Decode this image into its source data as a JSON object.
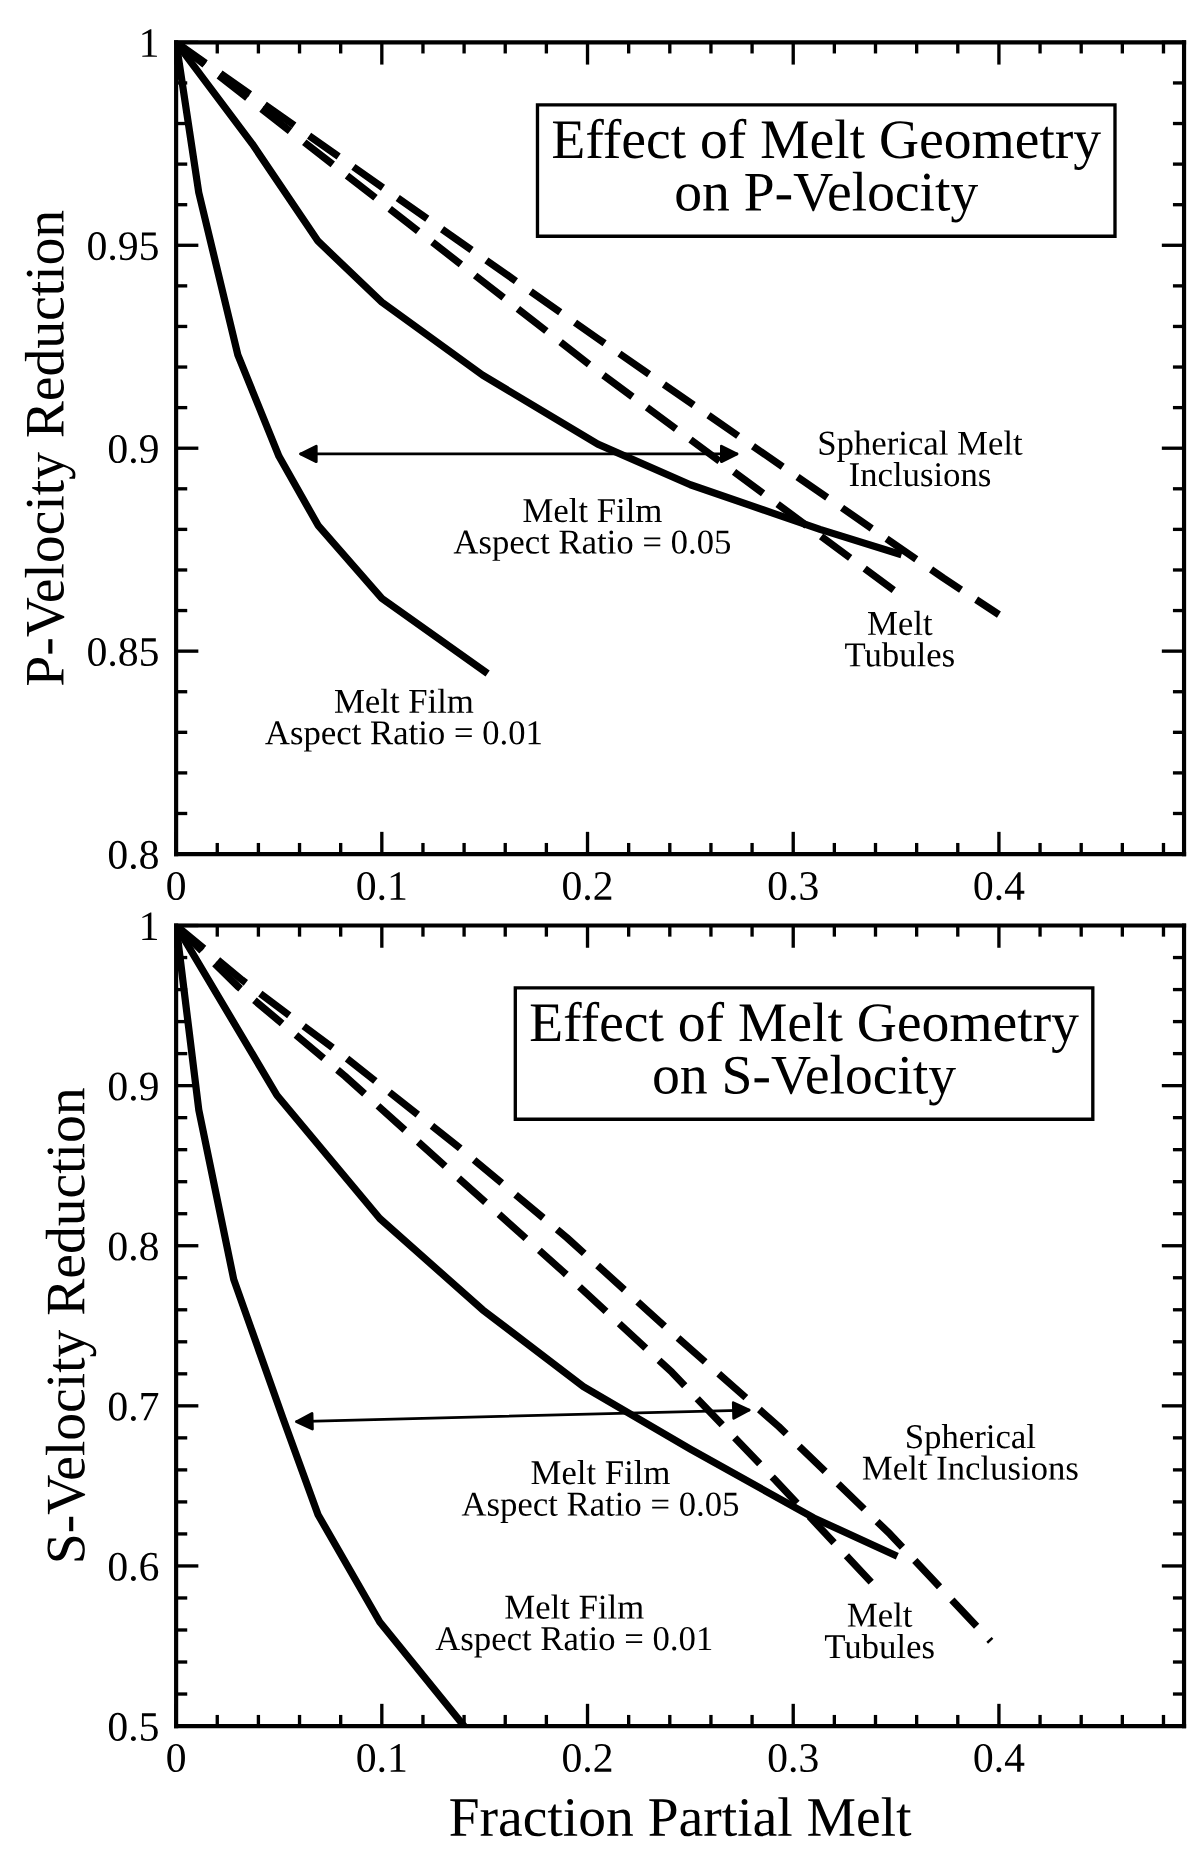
{
  "chart_data": [
    {
      "type": "line",
      "title": "Effect of Melt Geometry\non P-Velocity",
      "ylabel": "P-Velocity Reduction",
      "xlim": [
        0,
        0.49
      ],
      "xticks": [
        0,
        0.1,
        0.2,
        0.3,
        0.4
      ],
      "ylim": [
        0.8,
        1
      ],
      "yticks": [
        0.8,
        0.85,
        0.9,
        0.95,
        1
      ],
      "series": [
        {
          "name": "Melt Film\nAspect Ratio = 0.01",
          "color": "#000000",
          "line_style": "solid",
          "x": [
            0,
            0.011,
            0.03,
            0.05,
            0.069,
            0.1,
            0.15
          ],
          "values": [
            1,
            0.963,
            0.923,
            0.898,
            0.881,
            0.863,
            0.845
          ]
        },
        {
          "name": "Melt Film\nAspect Ratio = 0.05",
          "color": "#000000",
          "line_style": "solid",
          "x": [
            0,
            0.037,
            0.069,
            0.1,
            0.149,
            0.205,
            0.25,
            0.313,
            0.351
          ],
          "values": [
            1,
            0.975,
            0.951,
            0.936,
            0.918,
            0.901,
            0.891,
            0.88,
            0.874
          ]
        },
        {
          "name": "Spherical Melt\nInclusions",
          "color": "#000000",
          "line_style": "dashed",
          "x": [
            0,
            0.205,
            0.373,
            0.4
          ],
          "values": [
            1,
            0.927,
            0.868,
            0.859
          ]
        },
        {
          "name": "Melt\nTubules",
          "color": "#000000",
          "line_style": "dashed",
          "x": [
            0,
            0.205,
            0.349
          ],
          "values": [
            1,
            0.919,
            0.865
          ]
        }
      ]
    },
    {
      "type": "line",
      "title": "Effect of Melt Geometry\non S-Velocity",
      "xlabel": "Fraction Partial Melt",
      "ylabel": "S-Velocity Reduction",
      "xlim": [
        0,
        0.49
      ],
      "xticks": [
        0,
        0.1,
        0.2,
        0.3,
        0.4
      ],
      "ylim": [
        0.5,
        1
      ],
      "yticks": [
        0.5,
        0.6,
        0.7,
        0.8,
        0.9,
        1
      ],
      "series": [
        {
          "name": "Melt Film\nAspect Ratio = 0.01",
          "color": "#000000",
          "line_style": "solid",
          "x": [
            0,
            0.011,
            0.028,
            0.052,
            0.069,
            0.099,
            0.14
          ],
          "values": [
            1,
            0.885,
            0.779,
            0.692,
            0.632,
            0.565,
            0.5
          ]
        },
        {
          "name": "Melt Film\nAspect Ratio = 0.05",
          "color": "#000000",
          "line_style": "solid",
          "x": [
            0,
            0.049,
            0.099,
            0.149,
            0.198,
            0.25,
            0.31,
            0.349
          ],
          "values": [
            1,
            0.894,
            0.817,
            0.76,
            0.712,
            0.673,
            0.63,
            0.607
          ]
        },
        {
          "name": "Spherical\nMelt Inclusions",
          "color": "#000000",
          "line_style": "dashed",
          "x": [
            0,
            0.032,
            0.082,
            0.138,
            0.19,
            0.239,
            0.293,
            0.347,
            0.396
          ],
          "values": [
            1,
            0.966,
            0.918,
            0.861,
            0.805,
            0.748,
            0.687,
            0.62,
            0.553
          ]
        },
        {
          "name": "Melt\nTubules",
          "color": "#000000",
          "line_style": "dashed",
          "x": [
            0,
            0.03,
            0.082,
            0.134,
            0.188,
            0.241,
            0.291,
            0.34
          ],
          "values": [
            1,
            0.962,
            0.906,
            0.846,
            0.784,
            0.721,
            0.654,
            0.587
          ]
        }
      ]
    }
  ]
}
